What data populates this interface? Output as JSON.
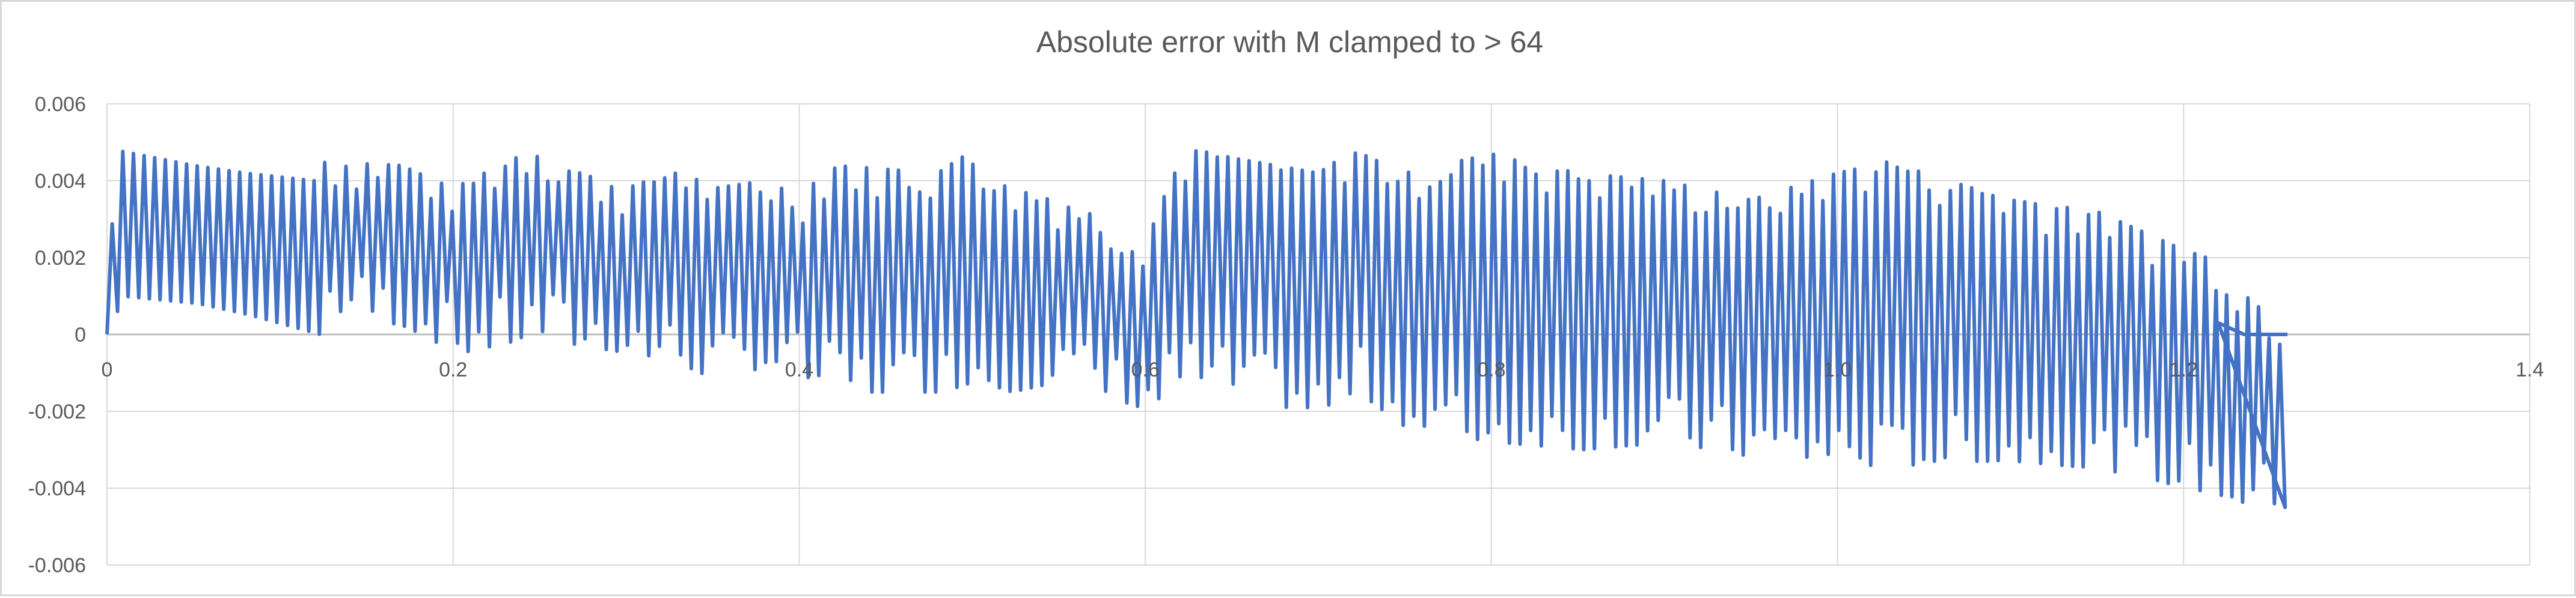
{
  "chart_data": {
    "type": "line",
    "title": "Absolute error with M clamped to > 64",
    "xlabel": "",
    "ylabel": "",
    "xlim": [
      0,
      1.4
    ],
    "ylim": [
      -0.006,
      0.006
    ],
    "x_ticks": [
      "0",
      "0.2",
      "0.4",
      "0.6",
      "0.8",
      "1.0",
      "1.2",
      "1.4"
    ],
    "x_tick_values": [
      0,
      0.2,
      0.4,
      0.6,
      0.8,
      1.0,
      1.2,
      1.4
    ],
    "y_ticks": [
      "0.006",
      "0.004",
      "0.002",
      "0",
      "-0.002",
      "-0.004",
      "-0.006"
    ],
    "y_tick_values": [
      0.006,
      0.004,
      0.002,
      0,
      -0.002,
      -0.004,
      -0.006
    ],
    "grid": true,
    "legend": "none",
    "series_color": "#4472c4",
    "grid_color": "#d9d9d9",
    "series": [
      {
        "upper_envelope": {
          "x": [
            0.0,
            0.005,
            0.05,
            0.08,
            0.12,
            0.122,
            0.17,
            0.2,
            0.25,
            0.26,
            0.3,
            0.33,
            0.35,
            0.38,
            0.4,
            0.42,
            0.48,
            0.5,
            0.52,
            0.55,
            0.6,
            0.62,
            0.63,
            0.65,
            0.7,
            0.72,
            0.75,
            0.8,
            0.85,
            0.9,
            0.95,
            1.0,
            1.03,
            1.05,
            1.1,
            1.15,
            1.2,
            1.22,
            1.24,
            1.26
          ],
          "y": [
            0.0,
            0.0048,
            0.0044,
            0.0042,
            0.004,
            0.0045,
            0.0044,
            0.0038,
            0.0049,
            0.0044,
            0.0038,
            0.0043,
            0.0038,
            0.004,
            0.0036,
            0.0044,
            0.0042,
            0.0048,
            0.0038,
            0.0035,
            0.0025,
            0.0045,
            0.0048,
            0.0046,
            0.0042,
            0.0048,
            0.0042,
            0.0047,
            0.0042,
            0.004,
            0.0035,
            0.0042,
            0.0045,
            0.0042,
            0.0035,
            0.0032,
            0.0022,
            0.0019,
            0.0008,
            0.0003
          ]
        },
        "lower_envelope": {
          "x": [
            0.0,
            0.005,
            0.05,
            0.08,
            0.12,
            0.122,
            0.17,
            0.2,
            0.25,
            0.26,
            0.3,
            0.33,
            0.35,
            0.38,
            0.4,
            0.42,
            0.48,
            0.5,
            0.52,
            0.55,
            0.6,
            0.62,
            0.63,
            0.65,
            0.7,
            0.72,
            0.75,
            0.8,
            0.85,
            0.9,
            0.95,
            1.0,
            1.03,
            1.05,
            1.1,
            1.15,
            1.2,
            1.22,
            1.24,
            1.26
          ],
          "y": [
            0.0,
            0.001,
            0.0008,
            0.0005,
            0.0,
            0.0007,
            0.0002,
            -0.0005,
            0.0,
            -0.0002,
            -0.0005,
            -0.0008,
            -0.0012,
            -0.0008,
            -0.0012,
            -0.0015,
            -0.0015,
            -0.0012,
            -0.0015,
            -0.0012,
            -0.002,
            -0.0012,
            -0.0015,
            -0.0015,
            -0.0022,
            -0.0015,
            -0.0025,
            -0.0028,
            -0.003,
            -0.0028,
            -0.0032,
            -0.0033,
            -0.0035,
            -0.0033,
            -0.0033,
            -0.0035,
            -0.004,
            -0.0042,
            -0.0045,
            -0.0045
          ]
        },
        "cycle_step": 0.00614,
        "tail": {
          "x": [
            1.22,
            1.225,
            1.23,
            1.235,
            1.24,
            1.25,
            1.26
          ],
          "y": [
            0.0003,
            0.0002,
            0.0001,
            0.0,
            0.0,
            0.0,
            0.0
          ]
        }
      }
    ]
  }
}
